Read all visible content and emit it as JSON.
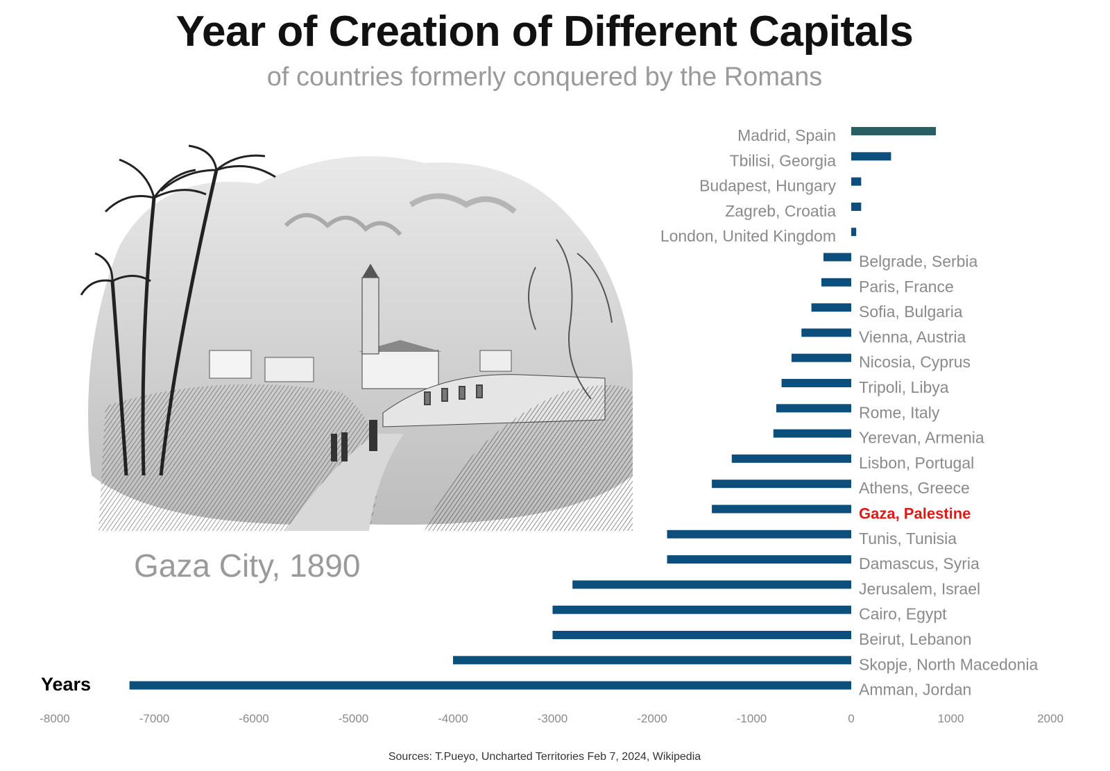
{
  "title": "Year of Creation of Different Capitals",
  "subtitle": "of countries formerly conquered by the Romans",
  "illustration": {
    "caption": "Gaza City, 1890"
  },
  "sources": "Sources: T.Pueyo, Uncharted Territories Feb 7, 2024, Wikipedia",
  "colors": {
    "bar": "#0d4f7c",
    "bar_top": "#275f63",
    "highlight": "#e01818",
    "label": "#8a8a8a",
    "axis_label": "#000000"
  },
  "chart_data": {
    "type": "bar",
    "orientation": "horizontal",
    "xlabel": "Years",
    "xlim": [
      -8000,
      2000
    ],
    "xticks": [
      "-8000",
      "-7000",
      "-6000",
      "-5000",
      "-4000",
      "-3000",
      "-2000",
      "-1000",
      "0",
      "1000",
      "2000"
    ],
    "highlight": "Gaza, Palestine",
    "categories": [
      "Madrid, Spain",
      "Tbilisi, Georgia",
      "Budapest, Hungary",
      "Zagreb, Croatia",
      "London, United Kingdom",
      "Belgrade, Serbia",
      "Paris, France",
      "Sofia, Bulgaria",
      "Vienna, Austria",
      "Nicosia, Cyprus",
      "Tripoli, Libya",
      "Rome, Italy",
      "Yerevan, Armenia",
      "Lisbon, Portugal",
      "Athens, Greece",
      "Gaza, Palestine",
      "Tunis, Tunisia",
      "Damascus, Syria",
      "Jerusalem, Israel",
      "Cairo, Egypt",
      "Beirut, Lebanon",
      "Skopje, North Macedonia",
      "Amman, Jordan"
    ],
    "values": [
      850,
      400,
      100,
      100,
      50,
      -279,
      -300,
      -400,
      -500,
      -600,
      -700,
      -753,
      -782,
      -1200,
      -1400,
      -1400,
      -1850,
      -1850,
      -2800,
      -3000,
      -3000,
      -4000,
      -7250
    ]
  }
}
